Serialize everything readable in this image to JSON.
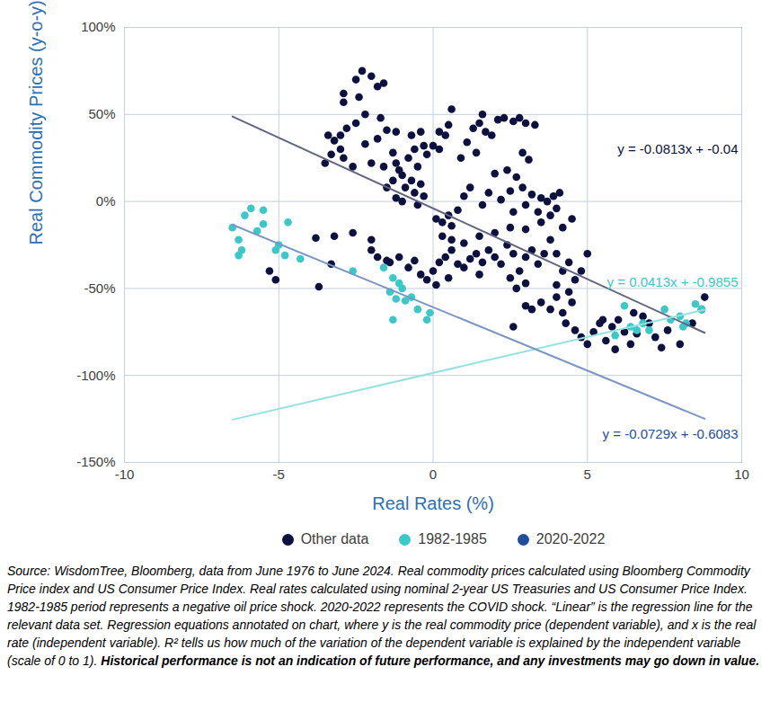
{
  "chart_data": {
    "type": "scatter",
    "x_label": "Real Rates (%)",
    "y_label": "Real Commodity Prices (y-o-y)",
    "xlim": [
      -10,
      10
    ],
    "xticks": [
      -10,
      -5,
      0,
      5,
      10
    ],
    "ylim": [
      -150,
      100
    ],
    "yticks": [
      {
        "value": -150,
        "label": "-150%"
      },
      {
        "value": -100,
        "label": "-100%"
      },
      {
        "value": -50,
        "label": "-50%"
      },
      {
        "value": 0,
        "label": "0%"
      },
      {
        "value": 50,
        "label": "50%"
      },
      {
        "value": 100,
        "label": "100%"
      }
    ],
    "grid": true,
    "legend": "bottom",
    "series": [
      {
        "name": "Other data",
        "color": "#0d1140",
        "marker": "circle",
        "x": [
          -2.3,
          -2.5,
          -2.0,
          -1.6,
          -1.8,
          -2.9,
          -2.4,
          -2.9,
          -3.4,
          -3.2,
          -3.0,
          -2.8,
          -2.5,
          -2.2,
          -1.7,
          -1.5,
          -1.2,
          -3.0,
          -3.3,
          -3.5,
          -2.9,
          -2.0,
          -1.6,
          -2.2,
          -1.8,
          -0.7,
          -0.4,
          -2.6,
          -1.3,
          -1.2,
          -1.1,
          -1.0,
          -1.3,
          -1.5,
          -0.8,
          -0.6,
          -0.5,
          -0.3,
          -0.2,
          0.0,
          0.2,
          0.4,
          0.5,
          0.6,
          0.2,
          -0.9,
          -0.7,
          -0.6,
          -0.4,
          -0.3,
          -0.5,
          -1.0,
          -1.2,
          0.1,
          0.3,
          0.5,
          0.6,
          0.8,
          1.0,
          1.2,
          1.1,
          1.3,
          1.5,
          1.6,
          1.7,
          1.9,
          1.4,
          0.9,
          2.1,
          2.3,
          2.6,
          2.8,
          3.0,
          3.3,
          2.0,
          2.4,
          2.7,
          2.5,
          2.9,
          3.2,
          3.5,
          3.7,
          3.9,
          4.1,
          3.0,
          3.4,
          3.8,
          4.0,
          2.2,
          1.8,
          1.6,
          2.6,
          2.9,
          3.1,
          -1.8,
          -1.4,
          -1.1,
          -0.8,
          -0.6,
          -0.4,
          -0.2,
          0.0,
          0.2,
          0.4,
          0.6,
          0.8,
          1.0,
          1.2,
          1.4,
          1.6,
          1.8,
          2.0,
          2.2,
          2.4,
          2.6,
          2.8,
          3.0,
          3.2,
          3.4,
          3.6,
          3.8,
          4.0,
          4.2,
          4.4,
          4.6,
          4.8,
          5.0,
          0.3,
          0.6,
          1.0,
          1.5,
          2.0,
          2.5,
          3.0,
          3.5,
          4.2,
          4.5,
          0.1,
          0.5,
          1.5,
          2.5,
          2.7,
          3.0,
          3.0,
          3.2,
          3.5,
          3.8,
          4.0,
          4.2,
          4.5,
          4.3,
          4.6,
          4.8,
          5.0,
          5.2,
          5.4,
          5.6,
          5.8,
          6.0,
          6.2,
          6.4,
          6.6,
          6.8,
          7.0,
          7.2,
          7.4,
          7.6,
          8.0,
          8.4,
          8.7,
          8.8,
          5.5,
          5.9,
          6.5,
          2.6,
          4.0,
          4.4,
          -5.3,
          -5.1,
          -3.8,
          -3.7,
          -3.3,
          -3.2,
          -2.6,
          -2.0,
          -2.0,
          -1.5
        ],
        "values": [
          75,
          70,
          72,
          68,
          66,
          62,
          60,
          57,
          38,
          35,
          38,
          42,
          45,
          50,
          48,
          41,
          40,
          30,
          27,
          22,
          25,
          22,
          20,
          33,
          36,
          38,
          40,
          20,
          28,
          22,
          18,
          15,
          12,
          8,
          25,
          30,
          20,
          32,
          27,
          32,
          30,
          38,
          44,
          53,
          40,
          8,
          12,
          5,
          10,
          3,
          -2,
          0,
          2,
          -10,
          -12,
          -8,
          -14,
          -5,
          3,
          8,
          34,
          42,
          45,
          50,
          40,
          38,
          28,
          25,
          47,
          48,
          46,
          48,
          45,
          44,
          16,
          18,
          14,
          6,
          8,
          4,
          2,
          0,
          3,
          5,
          -2,
          -6,
          -8,
          -4,
          1,
          5,
          -2,
          -6,
          28,
          24,
          -32,
          -35,
          -32,
          -38,
          -34,
          -42,
          -45,
          -40,
          -35,
          -32,
          -28,
          -36,
          -38,
          -33,
          -30,
          -35,
          -28,
          -32,
          -36,
          -25,
          -30,
          -40,
          -32,
          -28,
          -36,
          -30,
          -22,
          -30,
          -40,
          -35,
          -45,
          -40,
          -30,
          -20,
          -22,
          -24,
          -20,
          -18,
          -15,
          -16,
          -12,
          -15,
          -10,
          -48,
          -44,
          -42,
          -44,
          -50,
          -47,
          -60,
          -62,
          -58,
          -62,
          -55,
          -64,
          -58,
          -70,
          -74,
          -78,
          -82,
          -75,
          -70,
          -80,
          -72,
          -68,
          -75,
          -82,
          -76,
          -66,
          -70,
          -78,
          -84,
          -74,
          -82,
          -70,
          -62,
          -55,
          -68,
          -85,
          -64,
          -72,
          -48,
          -52,
          -40,
          -45,
          -21,
          -49,
          -36,
          -20,
          -18,
          -22,
          -28,
          -34
        ],
        "trendline": {
          "x": [
            -6.5,
            8.8
          ],
          "values": [
            48.8,
            -75.5
          ]
        },
        "equation": "y = -0.0813x + -0.04"
      },
      {
        "name": "1982-1985",
        "color": "#3cc8c8",
        "marker": "circle",
        "x": [
          -6.5,
          -6.3,
          -6.2,
          -6.3,
          -6.1,
          -5.9,
          -5.7,
          -5.5,
          -5.5,
          -5.1,
          -5.0,
          -4.8,
          -4.7,
          -4.3,
          -2.6,
          -1.6,
          -1.3,
          -1.3,
          -1.1,
          -1.0,
          -0.9,
          -0.7,
          -0.5,
          -0.2,
          -0.1,
          -1.4,
          -1.2,
          6.2,
          6.4,
          6.8,
          7.0,
          7.5,
          7.7,
          8.0,
          8.2,
          8.5,
          8.7,
          8.1,
          5.9,
          6.6
        ],
        "values": [
          -15,
          -22,
          -28,
          -31,
          -8,
          -4,
          -17,
          -13,
          -5,
          -28,
          -25,
          -31,
          -12,
          -33,
          -40,
          -38,
          -44,
          -68,
          -47,
          -50,
          -57,
          -55,
          -62,
          -68,
          -64,
          -52,
          -56,
          -60,
          -72,
          -70,
          -74,
          -62,
          -68,
          -66,
          -70,
          -59,
          -62,
          -72,
          -77,
          -74
        ],
        "trendline": {
          "x": [
            -6.5,
            8.8
          ],
          "values": [
            -125.4,
            -62.2
          ]
        },
        "equation": "y = 0.0413x + -0.9855"
      },
      {
        "name": "2020-2022",
        "color": "#1f4e9c",
        "marker": "circle",
        "x": [],
        "values": [],
        "trendline": {
          "x": [
            -6.5,
            8.8
          ],
          "values": [
            -13.4,
            -124.9
          ]
        },
        "equation": "y = -0.0729x + -0.6083"
      }
    ],
    "source_note": "Source: WisdomTree, Bloomberg, data from June 1976 to June 2024. Real commodity prices calculated using Bloomberg Commodity Price index and US Consumer Price Index. Real rates calculated using nominal 2-year US Treasuries and US Consumer Price Index. 1982-1985 period represents a negative oil price shock. 2020-2022 represents the COVID shock. “Linear” is the regression line for the relevant data set. Regression equations annotated on chart, where y is the real commodity price (dependent variable), and x is the real rate (independent variable). R² tells us how much of the variation of the dependent variable is explained by the independent variable (scale of 0 to 1).",
    "disclaimer": "Historical performance is not an indication of future performance, and any investments may go down in value."
  }
}
